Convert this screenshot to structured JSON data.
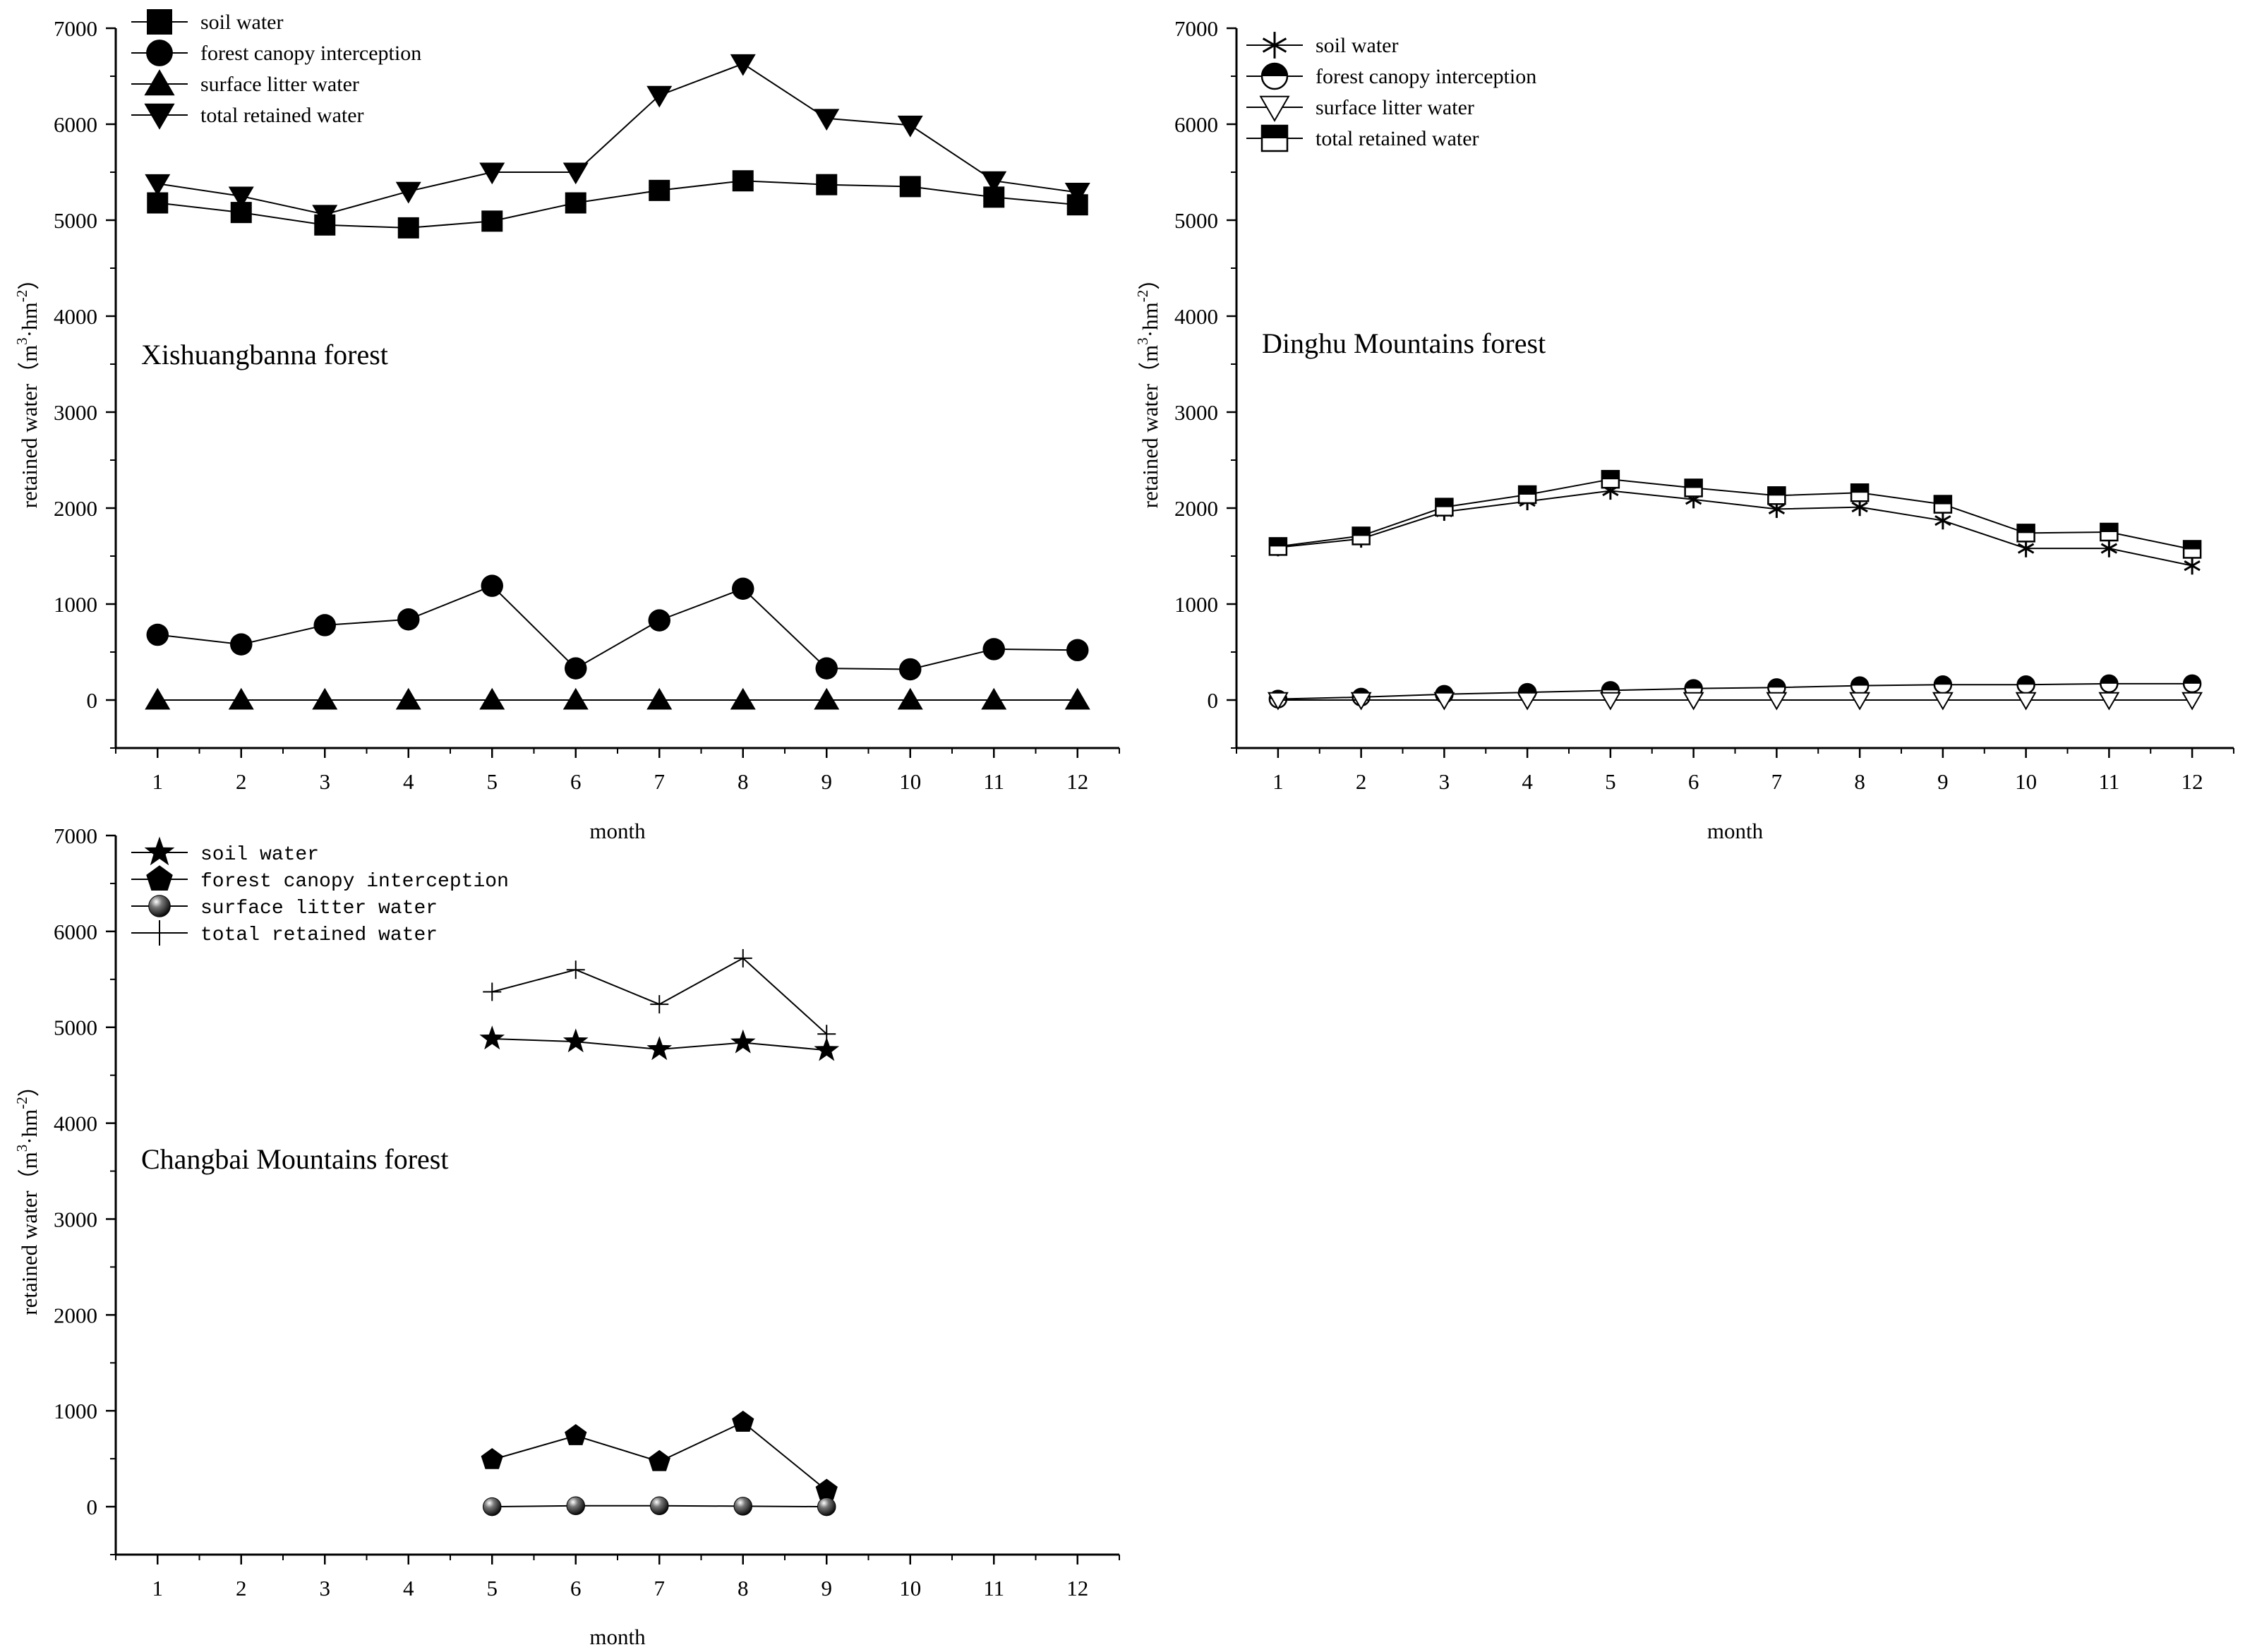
{
  "chart_data": [
    {
      "type": "line",
      "title": "Xishuangbanna forest",
      "xlabel": "month",
      "ylabel": "retained water（m³·hm⁻²）",
      "ylabel_main": "retained water（m",
      "ylabel_sup1": "3",
      "ylabel_mid": "·hm",
      "ylabel_sup2": "-2",
      "ylabel_end": "）",
      "xlim": [
        0.5,
        12.5
      ],
      "ylim": [
        -500,
        7000
      ],
      "xticks": [
        1,
        2,
        3,
        4,
        5,
        6,
        7,
        8,
        9,
        10,
        11,
        12
      ],
      "yticks": [
        0,
        1000,
        2000,
        3000,
        4000,
        5000,
        6000,
        7000
      ],
      "legend_position": "top-left",
      "grid": false,
      "series": [
        {
          "name": "soil water",
          "marker": "square-filled",
          "x": [
            1,
            2,
            3,
            4,
            5,
            6,
            7,
            8,
            9,
            10,
            11,
            12
          ],
          "y": [
            5180,
            5080,
            4950,
            4920,
            4990,
            5180,
            5310,
            5410,
            5370,
            5350,
            5240,
            5160
          ]
        },
        {
          "name": "forest canopy interception",
          "marker": "circle-filled",
          "x": [
            1,
            2,
            3,
            4,
            5,
            6,
            7,
            8,
            9,
            10,
            11,
            12
          ],
          "y": [
            680,
            580,
            780,
            840,
            1190,
            330,
            830,
            1160,
            330,
            320,
            530,
            520
          ]
        },
        {
          "name": "surface litter water",
          "marker": "triangle-up-filled",
          "x": [
            1,
            2,
            3,
            4,
            5,
            6,
            7,
            8,
            9,
            10,
            11,
            12
          ],
          "y": [
            0,
            0,
            0,
            0,
            0,
            0,
            0,
            0,
            0,
            0,
            0,
            0
          ]
        },
        {
          "name": "total retained water",
          "marker": "triangle-down-filled",
          "x": [
            1,
            2,
            3,
            4,
            5,
            6,
            7,
            8,
            9,
            10,
            11,
            12
          ],
          "y": [
            5380,
            5250,
            5060,
            5300,
            5500,
            5500,
            6300,
            6630,
            6060,
            5990,
            5410,
            5290
          ]
        }
      ]
    },
    {
      "type": "line",
      "title": "Dinghu Mountains forest",
      "xlabel": "month",
      "ylabel": "retained water（m³·hm⁻²）",
      "ylabel_main": "retained water（m",
      "ylabel_sup1": "3",
      "ylabel_mid": "·hm",
      "ylabel_sup2": "-2",
      "ylabel_end": "）",
      "xlim": [
        0.5,
        12.5
      ],
      "ylim": [
        -500,
        7000
      ],
      "xticks": [
        1,
        2,
        3,
        4,
        5,
        6,
        7,
        8,
        9,
        10,
        11,
        12
      ],
      "yticks": [
        0,
        1000,
        2000,
        3000,
        4000,
        5000,
        6000,
        7000
      ],
      "legend_position": "top-left",
      "grid": false,
      "series": [
        {
          "name": "soil water",
          "marker": "asterisk",
          "x": [
            1,
            2,
            3,
            4,
            5,
            6,
            7,
            8,
            9,
            10,
            11,
            12
          ],
          "y": [
            1590,
            1680,
            1960,
            2070,
            2180,
            2090,
            1990,
            2010,
            1870,
            1580,
            1580,
            1400
          ]
        },
        {
          "name": "forest canopy interception",
          "marker": "circle-half",
          "x": [
            1,
            2,
            3,
            4,
            5,
            6,
            7,
            8,
            9,
            10,
            11,
            12
          ],
          "y": [
            10,
            30,
            60,
            80,
            100,
            120,
            130,
            150,
            160,
            160,
            170,
            170
          ]
        },
        {
          "name": "surface litter water",
          "marker": "triangle-down-open",
          "x": [
            1,
            2,
            3,
            4,
            5,
            6,
            7,
            8,
            9,
            10,
            11,
            12
          ],
          "y": [
            0,
            0,
            0,
            0,
            0,
            0,
            0,
            0,
            0,
            0,
            0,
            0
          ]
        },
        {
          "name": "total retained water",
          "marker": "square-half",
          "x": [
            1,
            2,
            3,
            4,
            5,
            6,
            7,
            8,
            9,
            10,
            11,
            12
          ],
          "y": [
            1600,
            1710,
            2010,
            2140,
            2300,
            2210,
            2130,
            2160,
            2040,
            1740,
            1750,
            1570
          ]
        }
      ]
    },
    {
      "type": "line",
      "title": "Changbai Mountains forest",
      "xlabel": "month",
      "ylabel": "retained water（m³·hm⁻²）",
      "ylabel_main": "retained water（m",
      "ylabel_sup1": "3",
      "ylabel_mid": "·hm",
      "ylabel_sup2": "-2",
      "ylabel_end": "）",
      "xlim": [
        0.5,
        12.5
      ],
      "ylim": [
        -500,
        7000
      ],
      "xticks": [
        1,
        2,
        3,
        4,
        5,
        6,
        7,
        8,
        9,
        10,
        11,
        12
      ],
      "yticks": [
        0,
        1000,
        2000,
        3000,
        4000,
        5000,
        6000,
        7000
      ],
      "legend_position": "top-left",
      "grid": false,
      "series": [
        {
          "name": "soil water",
          "marker": "star",
          "x": [
            5,
            6,
            7,
            8,
            9
          ],
          "y": [
            4880,
            4850,
            4770,
            4840,
            4760
          ]
        },
        {
          "name": "forest canopy interception",
          "marker": "pentagon",
          "x": [
            5,
            6,
            7,
            8,
            9
          ],
          "y": [
            490,
            740,
            470,
            880,
            170
          ]
        },
        {
          "name": "surface litter water",
          "marker": "sphere",
          "x": [
            5,
            6,
            7,
            8,
            9
          ],
          "y": [
            0,
            10,
            10,
            5,
            0
          ]
        },
        {
          "name": "total retained water",
          "marker": "plus",
          "x": [
            5,
            6,
            7,
            8,
            9
          ],
          "y": [
            5370,
            5600,
            5240,
            5720,
            4930
          ]
        }
      ]
    }
  ]
}
